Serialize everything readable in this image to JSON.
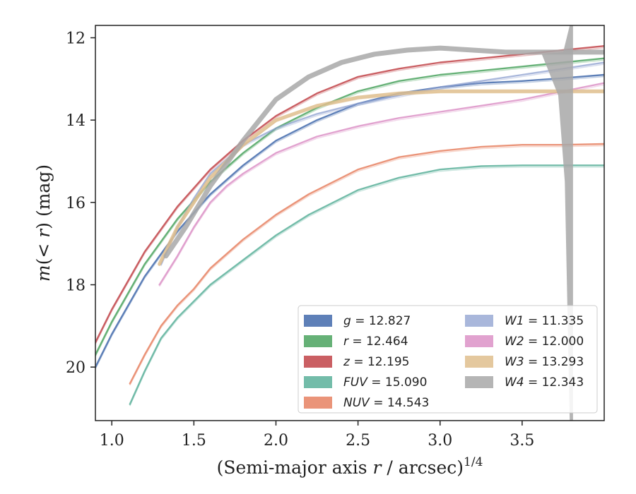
{
  "chart_data": {
    "type": "line",
    "title": "",
    "xlabel_main": "(Semi-major axis ",
    "xlabel_var": "r",
    "xlabel_tail": " / arcsec)",
    "xlabel_exp": "1/4",
    "ylabel_lead": "m",
    "ylabel_mid": "(< ",
    "ylabel_var": "r",
    "ylabel_tail": ") (mag)",
    "xlim": [
      0.9,
      4.0
    ],
    "ylim": [
      21.3,
      11.7
    ],
    "y_inverted": true,
    "grid": false,
    "legend_position": "lower-right",
    "x_ticks": [
      {
        "value": 1.0,
        "label": "1.0"
      },
      {
        "value": 1.5,
        "label": "1.5"
      },
      {
        "value": 2.0,
        "label": "2.0"
      },
      {
        "value": 2.5,
        "label": "2.5"
      },
      {
        "value": 3.0,
        "label": "3.0"
      },
      {
        "value": 3.5,
        "label": "3.5"
      }
    ],
    "y_ticks": [
      {
        "value": 12,
        "label": "12"
      },
      {
        "value": 14,
        "label": "14"
      },
      {
        "value": 16,
        "label": "16"
      },
      {
        "value": 18,
        "label": "18"
      },
      {
        "value": 20,
        "label": "20"
      }
    ],
    "series": [
      {
        "name": "g",
        "value_label": "= 12.827",
        "color": "#4c72b0",
        "opacity": 0.9,
        "x": [
          0.9,
          1.0,
          1.2,
          1.4,
          1.6,
          1.8,
          2.0,
          2.25,
          2.5,
          2.75,
          3.0,
          3.25,
          3.5,
          3.75,
          4.0
        ],
        "y": [
          20.0,
          19.2,
          17.8,
          16.7,
          15.8,
          15.1,
          14.5,
          14.0,
          13.6,
          13.35,
          13.2,
          13.1,
          13.05,
          12.98,
          12.9
        ]
      },
      {
        "name": "r",
        "value_label": "= 12.464",
        "color": "#55a868",
        "opacity": 0.9,
        "x": [
          0.9,
          1.0,
          1.2,
          1.4,
          1.6,
          1.8,
          2.0,
          2.25,
          2.5,
          2.75,
          3.0,
          3.25,
          3.5,
          3.75,
          4.0
        ],
        "y": [
          19.7,
          18.9,
          17.5,
          16.4,
          15.5,
          14.8,
          14.2,
          13.7,
          13.3,
          13.05,
          12.9,
          12.8,
          12.7,
          12.6,
          12.5
        ]
      },
      {
        "name": "z",
        "value_label": "= 12.195",
        "color": "#c44e52",
        "opacity": 0.9,
        "x": [
          0.9,
          1.0,
          1.2,
          1.4,
          1.6,
          1.8,
          2.0,
          2.25,
          2.5,
          2.75,
          3.0,
          3.25,
          3.5,
          3.75,
          4.0
        ],
        "y": [
          19.4,
          18.6,
          17.2,
          16.1,
          15.2,
          14.5,
          13.9,
          13.35,
          12.95,
          12.75,
          12.6,
          12.5,
          12.4,
          12.3,
          12.2
        ]
      },
      {
        "name": "FUV",
        "value_label": "= 15.090",
        "color": "#64b5a0",
        "opacity": 0.9,
        "x": [
          1.11,
          1.2,
          1.3,
          1.4,
          1.5,
          1.6,
          1.8,
          2.0,
          2.2,
          2.5,
          2.75,
          3.0,
          3.25,
          3.5,
          3.75,
          4.0
        ],
        "y": [
          20.9,
          20.1,
          19.3,
          18.8,
          18.4,
          18.0,
          17.4,
          16.8,
          16.3,
          15.7,
          15.4,
          15.2,
          15.12,
          15.1,
          15.1,
          15.1
        ]
      },
      {
        "name": "NUV",
        "value_label": "= 14.543",
        "color": "#e8886a",
        "opacity": 0.9,
        "x": [
          1.11,
          1.2,
          1.3,
          1.4,
          1.5,
          1.6,
          1.8,
          2.0,
          2.2,
          2.5,
          2.75,
          3.0,
          3.25,
          3.5,
          3.75,
          4.0
        ],
        "y": [
          20.4,
          19.7,
          19.0,
          18.5,
          18.1,
          17.6,
          16.9,
          16.3,
          15.8,
          15.2,
          14.9,
          14.75,
          14.65,
          14.6,
          14.6,
          14.58
        ]
      },
      {
        "name": "W1",
        "value_label": "= 11.335",
        "color": "#8c9fcf",
        "opacity": 0.75,
        "x": [
          1.3,
          1.4,
          1.5,
          1.6,
          1.8,
          2.0,
          2.25,
          2.5,
          2.75,
          3.0,
          3.25,
          3.5,
          3.75,
          4.0
        ],
        "y": [
          17.5,
          16.6,
          15.9,
          15.3,
          14.6,
          14.2,
          13.85,
          13.6,
          13.4,
          13.2,
          13.05,
          12.9,
          12.75,
          12.6
        ]
      },
      {
        "name": "W2",
        "value_label": "= 12.000",
        "color": "#da8bc3",
        "opacity": 0.8,
        "x": [
          1.29,
          1.4,
          1.5,
          1.6,
          1.7,
          1.8,
          2.0,
          2.25,
          2.5,
          2.75,
          3.0,
          3.25,
          3.5,
          3.75,
          4.0
        ],
        "y": [
          18.0,
          17.3,
          16.6,
          16.0,
          15.6,
          15.3,
          14.8,
          14.4,
          14.15,
          13.95,
          13.8,
          13.65,
          13.5,
          13.3,
          13.1
        ]
      },
      {
        "name": "W3",
        "value_label": "= 13.293",
        "color": "#dfbe8d",
        "opacity": 0.85,
        "x": [
          1.29,
          1.4,
          1.5,
          1.6,
          1.8,
          2.0,
          2.25,
          2.5,
          2.75,
          3.0,
          3.25,
          3.5,
          3.75,
          4.0
        ],
        "y": [
          17.5,
          16.6,
          16.0,
          15.4,
          14.6,
          14.0,
          13.65,
          13.45,
          13.35,
          13.3,
          13.3,
          13.3,
          13.3,
          13.3
        ]
      },
      {
        "name": "W4",
        "value_label": "= 12.343",
        "color": "#a8a8a8",
        "opacity": 0.85,
        "x": [
          1.33,
          1.45,
          1.6,
          1.8,
          2.0,
          2.2,
          2.4,
          2.6,
          2.8,
          3.0,
          3.2,
          3.4,
          3.6,
          3.75,
          3.8,
          3.85,
          4.0
        ],
        "y": [
          17.3,
          16.6,
          15.6,
          14.5,
          13.5,
          12.95,
          12.6,
          12.4,
          12.3,
          12.25,
          12.3,
          12.35,
          12.35,
          12.35,
          12.35,
          12.35,
          12.35
        ]
      }
    ]
  }
}
